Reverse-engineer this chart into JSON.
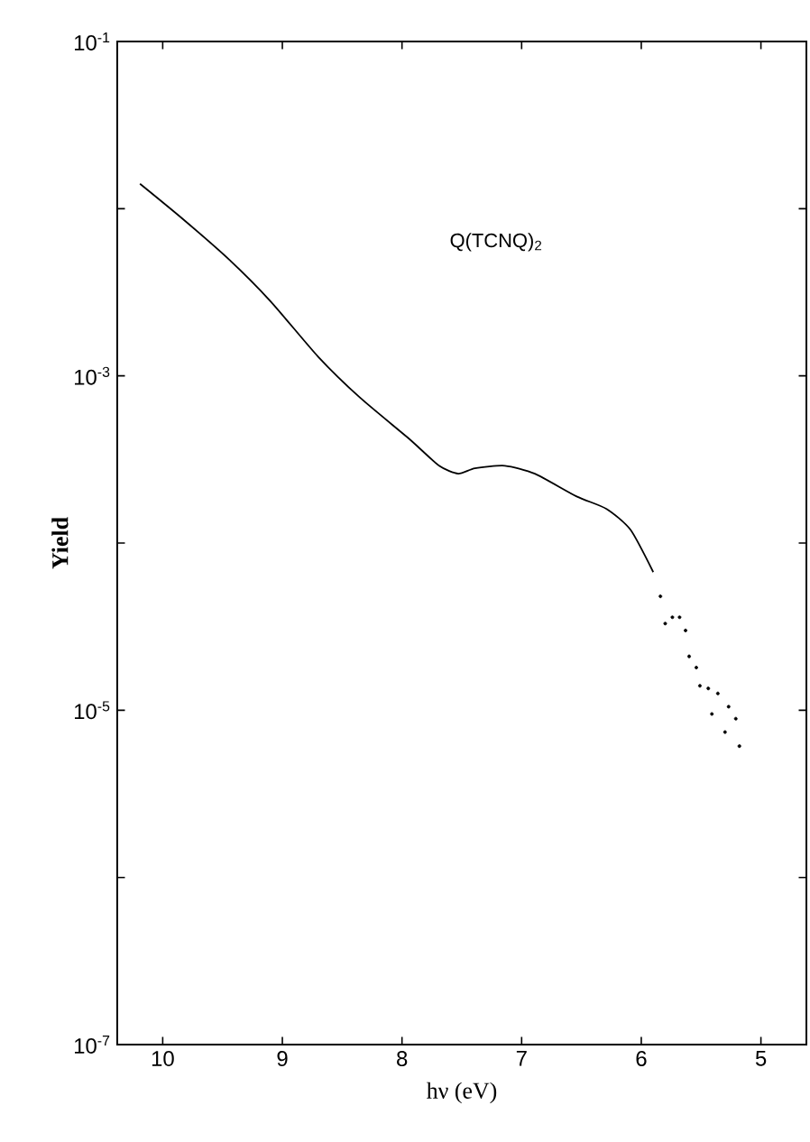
{
  "chart_data": {
    "type": "line",
    "xlabel": "hν (eV)",
    "ylabel": "Yield",
    "annotations": [
      "Q(TCNQ)$_{2}$"
    ],
    "log": "y",
    "grid": false,
    "xlim": [
      10.38,
      4.62
    ],
    "ylim": [
      1e-07,
      0.1
    ],
    "xticks": [
      10,
      9,
      8,
      7,
      6,
      5
    ],
    "yticks": [
      {
        "value": 0.1,
        "label": "10$^{-1}$"
      },
      {
        "value": 0.01,
        "label": null
      },
      {
        "value": 0.001,
        "label": "10$^{-3}$"
      },
      {
        "value": 0.0001,
        "label": null
      },
      {
        "value": 1e-05,
        "label": "10$^{-5}$"
      },
      {
        "value": 1e-06,
        "label": null
      },
      {
        "value": 1e-07,
        "label": "10$^{-7}$"
      }
    ],
    "series": [
      {
        "color": "#000000",
        "marker": "none",
        "line_style": "solid",
        "x": [
          10.19,
          9.85,
          9.45,
          9.1,
          8.7,
          8.35,
          7.94,
          7.69,
          7.53,
          7.39,
          7.14,
          6.89,
          6.54,
          6.29,
          6.09,
          5.9
        ],
        "values": [
          0.0141,
          0.0089,
          0.005,
          0.0028,
          0.0013,
          0.00074,
          0.00042,
          0.00029,
          0.00026,
          0.00028,
          0.00029,
          0.00026,
          0.00019,
          0.00016,
          0.00012,
          6.7e-05
        ]
      },
      {
        "type": "scatter",
        "color": "#000000",
        "marker": "circle",
        "x": [
          5.84,
          5.8,
          5.74,
          5.68,
          5.63,
          5.6,
          5.54,
          5.51,
          5.44,
          5.36,
          5.41,
          5.27,
          5.21,
          5.3,
          5.18
        ],
        "values": [
          4.8e-05,
          3.3e-05,
          3.6e-05,
          3.6e-05,
          3e-05,
          2.1e-05,
          1.8e-05,
          1.4e-05,
          1.35e-05,
          1.26e-05,
          9.5e-06,
          1.05e-05,
          8.9e-06,
          7.4e-06,
          6.1e-06
        ]
      }
    ]
  }
}
